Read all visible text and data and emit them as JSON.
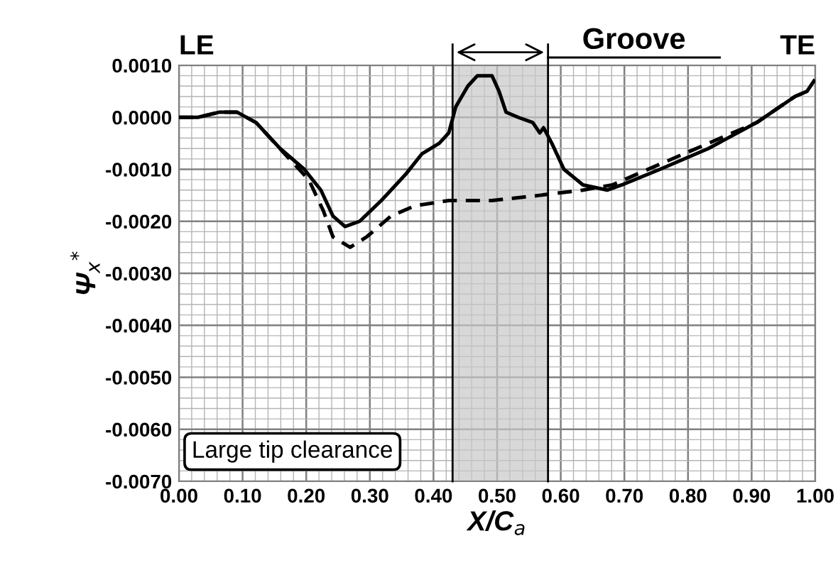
{
  "chart_data": {
    "type": "line",
    "xlabel": "X/C$_{a}$",
    "ylabel": "Ψ$_{x}$$^{*}$",
    "annotations": [
      "LE",
      "TE",
      "Large tip clearance"
    ],
    "series": [
      {
        "color": "#000000",
        "line_style": "solid",
        "x": [
          0,
          0.03,
          0.064,
          0.091,
          0.121,
          0.159,
          0.197,
          0.223,
          0.242,
          0.261,
          0.284,
          0.318,
          0.356,
          0.382,
          0.409,
          0.424,
          0.435,
          0.454,
          0.469,
          0.492,
          0.503,
          0.514,
          0.533,
          0.556,
          0.567,
          0.573,
          0.586,
          0.605,
          0.635,
          0.673,
          0.696,
          0.756,
          0.832,
          0.908,
          0.968,
          0.987,
          0.998
        ],
        "values": [
          0,
          0,
          0.0001,
          0.0001,
          -0.0001,
          -0.0006,
          -0.001,
          -0.0014,
          -0.0019,
          -0.0021,
          -0.002,
          -0.0016,
          -0.0011,
          -0.0007,
          -0.0005,
          -0.0003,
          0.0002,
          0.0006,
          0.0008,
          0.0008,
          0.0005,
          0.0001,
          0,
          -0.0001,
          -0.0003,
          -0.0002,
          -0.0005,
          -0.001,
          -0.0013,
          -0.0014,
          -0.0013,
          -0.001,
          -0.0006,
          -0.0001,
          0.0004,
          0.0005,
          0.0007
        ]
      },
      {
        "color": "#000000",
        "line_style": "dashed",
        "x": [
          0,
          0.03,
          0.064,
          0.091,
          0.121,
          0.166,
          0.204,
          0.227,
          0.242,
          0.269,
          0.295,
          0.333,
          0.371,
          0.424,
          0.492,
          0.567,
          0.635,
          0.681,
          0.756,
          0.832,
          0.908,
          0.968,
          0.987
        ],
        "values": [
          0,
          0,
          0.0001,
          0.0001,
          -0.0001,
          -0.0007,
          -0.0012,
          -0.0018,
          -0.0023,
          -0.0025,
          -0.0023,
          -0.0019,
          -0.0017,
          -0.0016,
          -0.0016,
          -0.0015,
          -0.0014,
          -0.0013,
          -0.0009,
          -0.0005,
          -0.0001,
          0.0004,
          0.0005
        ]
      }
    ],
    "ref_lines": [
      {
        "axis": "x",
        "value": 0.43,
        "color": "#000000"
      },
      {
        "axis": "x",
        "value": 0.58,
        "color": "#000000"
      }
    ],
    "bands": [
      {
        "axis": "x",
        "from": 0.43,
        "to": 0.58,
        "label": "Groove",
        "color": "#c8c8c8"
      }
    ],
    "xlim": [
      0,
      1
    ],
    "ylim": [
      -0.007,
      0.001
    ],
    "xticks": [
      {
        "value": 0,
        "label": "0.00"
      },
      {
        "value": 0.1,
        "label": "0.10"
      },
      {
        "value": 0.2,
        "label": "0.20"
      },
      {
        "value": 0.3,
        "label": "0.30"
      },
      {
        "value": 0.4,
        "label": "0.40"
      },
      {
        "value": 0.5,
        "label": "0.50"
      },
      {
        "value": 0.6,
        "label": "0.60"
      },
      {
        "value": 0.7,
        "label": "0.70"
      },
      {
        "value": 0.8,
        "label": "0.80"
      },
      {
        "value": 0.9,
        "label": "0.90"
      },
      {
        "value": 1,
        "label": "1.00"
      }
    ],
    "yticks": [
      {
        "value": 0.001,
        "label": "0.0010"
      },
      {
        "value": 0,
        "label": "0.0000"
      },
      {
        "value": -0.001,
        "label": "-0.0010"
      },
      {
        "value": -0.002,
        "label": "-0.0020"
      },
      {
        "value": -0.003,
        "label": "-0.0030"
      },
      {
        "value": -0.004,
        "label": "-0.0040"
      },
      {
        "value": -0.005,
        "label": "-0.0050"
      },
      {
        "value": -0.006,
        "label": "-0.0060"
      },
      {
        "value": -0.007,
        "label": "-0.0070"
      }
    ],
    "grid": true,
    "legend": false,
    "marker": "none"
  }
}
